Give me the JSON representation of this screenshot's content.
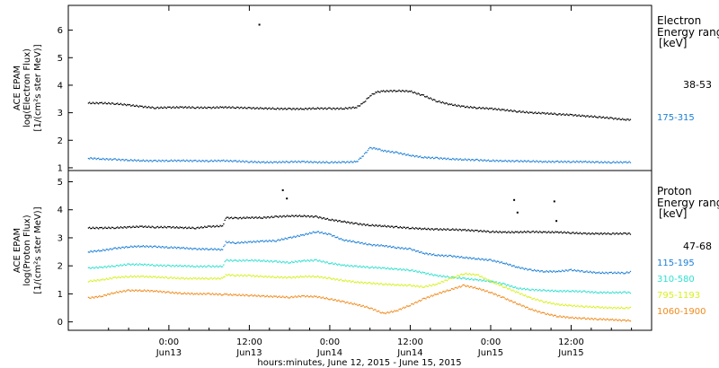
{
  "chart_data": [
    {
      "type": "scatter",
      "ylabel_lines": [
        "ACE EPAM",
        "log(Electron Flux)",
        "[1/(cm²s ster MeV)]"
      ],
      "ylim": [
        0.9,
        6.9
      ],
      "yticks": [
        1,
        2,
        3,
        4,
        5,
        6
      ],
      "legend_title_lines": [
        "Electron",
        "Energy ranges",
        "[keV]"
      ],
      "legend_placement": "right",
      "series": [
        {
          "name": "38-53",
          "color": "#000000",
          "x": [
            -12,
            -10,
            -8,
            -6,
            -4,
            -2,
            0,
            2,
            4,
            6,
            8,
            10,
            12,
            14,
            16,
            18,
            20,
            22,
            24,
            26,
            28,
            29,
            30,
            31,
            32,
            34,
            36,
            38,
            40,
            42,
            44,
            46,
            48,
            50,
            52,
            54,
            56,
            58,
            60,
            62,
            64,
            66,
            68,
            69
          ],
          "y": [
            3.35,
            3.35,
            3.33,
            3.28,
            3.22,
            3.18,
            3.19,
            3.2,
            3.19,
            3.18,
            3.2,
            3.19,
            3.17,
            3.16,
            3.15,
            3.14,
            3.14,
            3.16,
            3.15,
            3.15,
            3.2,
            3.35,
            3.62,
            3.75,
            3.78,
            3.8,
            3.78,
            3.62,
            3.42,
            3.3,
            3.22,
            3.18,
            3.15,
            3.1,
            3.05,
            3.0,
            2.98,
            2.95,
            2.92,
            2.88,
            2.85,
            2.8,
            2.75,
            2.75
          ]
        },
        {
          "name": "175-315",
          "color": "#1c7fd6",
          "x": [
            -12,
            -10,
            -8,
            -6,
            -4,
            -2,
            0,
            2,
            4,
            6,
            8,
            10,
            12,
            14,
            16,
            18,
            20,
            22,
            24,
            26,
            28,
            29,
            30,
            31,
            32,
            34,
            36,
            38,
            40,
            42,
            44,
            46,
            48,
            50,
            52,
            54,
            56,
            58,
            60,
            62,
            64,
            66,
            68,
            69
          ],
          "y": [
            1.35,
            1.32,
            1.3,
            1.28,
            1.26,
            1.25,
            1.26,
            1.26,
            1.25,
            1.25,
            1.26,
            1.24,
            1.22,
            1.2,
            1.2,
            1.22,
            1.22,
            1.2,
            1.2,
            1.2,
            1.22,
            1.45,
            1.72,
            1.7,
            1.62,
            1.55,
            1.45,
            1.38,
            1.35,
            1.32,
            1.3,
            1.28,
            1.26,
            1.25,
            1.24,
            1.24,
            1.22,
            1.22,
            1.22,
            1.22,
            1.2,
            1.2,
            1.2,
            1.2
          ]
        }
      ],
      "outliers": [
        {
          "x": 13.5,
          "y": 6.2,
          "series": "38-53"
        }
      ]
    },
    {
      "type": "scatter",
      "ylabel_lines": [
        "ACE EPAM",
        "log(Proton Flux)",
        "[1/(cm²s ster MeV)]"
      ],
      "ylim": [
        -0.3,
        5.4
      ],
      "yticks": [
        0,
        1,
        2,
        3,
        4,
        5
      ],
      "legend_title_lines": [
        "Proton",
        "Energy ranges",
        "[keV]"
      ],
      "legend_placement": "right",
      "xlabel": "hours:minutes, June 12, 2015 - June 15, 2015",
      "xlim": [
        -15,
        72
      ],
      "xticks": [
        {
          "x": 0,
          "line1": "0:00",
          "line2": "Jun13"
        },
        {
          "x": 12,
          "line1": "12:00",
          "line2": "Jun13"
        },
        {
          "x": 24,
          "line1": "0:00",
          "line2": "Jun14"
        },
        {
          "x": 36,
          "line1": "12:00",
          "line2": "Jun14"
        },
        {
          "x": 48,
          "line1": "0:00",
          "line2": "Jun15"
        },
        {
          "x": 60,
          "line1": "12:00",
          "line2": "Jun15"
        }
      ],
      "series": [
        {
          "name": "47-68",
          "color": "#000000",
          "x": [
            -12,
            -10,
            -8,
            -6,
            -4,
            -2,
            0,
            2,
            4,
            6,
            8,
            8.5,
            10,
            12,
            14,
            16,
            18,
            20,
            22,
            24,
            26,
            28,
            30,
            32,
            34,
            36,
            38,
            40,
            42,
            44,
            46,
            48,
            50,
            52,
            54,
            56,
            58,
            60,
            62,
            64,
            66,
            68,
            69
          ],
          "y": [
            3.35,
            3.35,
            3.36,
            3.38,
            3.4,
            3.38,
            3.38,
            3.36,
            3.35,
            3.4,
            3.42,
            3.72,
            3.7,
            3.72,
            3.72,
            3.75,
            3.78,
            3.78,
            3.75,
            3.65,
            3.58,
            3.5,
            3.45,
            3.42,
            3.38,
            3.35,
            3.32,
            3.3,
            3.3,
            3.28,
            3.25,
            3.22,
            3.2,
            3.2,
            3.22,
            3.2,
            3.2,
            3.18,
            3.15,
            3.15,
            3.15,
            3.15,
            3.15
          ]
        },
        {
          "name": "115-195",
          "color": "#1c7fd6",
          "x": [
            -12,
            -10,
            -8,
            -6,
            -4,
            -2,
            0,
            2,
            4,
            6,
            8,
            8.5,
            10,
            12,
            14,
            16,
            18,
            20,
            22,
            24,
            26,
            28,
            30,
            32,
            34,
            36,
            38,
            40,
            42,
            44,
            46,
            48,
            50,
            52,
            54,
            56,
            58,
            60,
            62,
            64,
            66,
            68,
            69
          ],
          "y": [
            2.5,
            2.55,
            2.62,
            2.68,
            2.7,
            2.68,
            2.66,
            2.64,
            2.6,
            2.6,
            2.58,
            2.85,
            2.82,
            2.85,
            2.88,
            2.9,
            3.0,
            3.1,
            3.22,
            3.12,
            2.92,
            2.85,
            2.75,
            2.72,
            2.65,
            2.6,
            2.45,
            2.38,
            2.35,
            2.3,
            2.25,
            2.2,
            2.1,
            1.95,
            1.85,
            1.8,
            1.8,
            1.85,
            1.8,
            1.75,
            1.75,
            1.75,
            1.78
          ]
        },
        {
          "name": "310-580",
          "color": "#30e0d0",
          "x": [
            -12,
            -10,
            -8,
            -6,
            -4,
            -2,
            0,
            2,
            4,
            6,
            8,
            8.5,
            10,
            12,
            14,
            16,
            18,
            20,
            22,
            24,
            26,
            28,
            30,
            32,
            34,
            36,
            38,
            40,
            42,
            44,
            46,
            48,
            50,
            52,
            54,
            56,
            58,
            60,
            62,
            64,
            66,
            68,
            69
          ],
          "y": [
            1.92,
            1.95,
            2.0,
            2.05,
            2.05,
            2.02,
            2.0,
            2.0,
            1.98,
            1.98,
            1.98,
            2.2,
            2.18,
            2.2,
            2.18,
            2.15,
            2.12,
            2.18,
            2.2,
            2.1,
            2.02,
            1.98,
            1.95,
            1.92,
            1.88,
            1.85,
            1.75,
            1.65,
            1.6,
            1.55,
            1.5,
            1.45,
            1.35,
            1.2,
            1.15,
            1.12,
            1.1,
            1.1,
            1.08,
            1.05,
            1.05,
            1.05,
            1.05
          ]
        },
        {
          "name": "795-1193",
          "color": "#d8f020",
          "x": [
            -12,
            -10,
            -8,
            -6,
            -4,
            -2,
            0,
            2,
            4,
            6,
            8,
            8.5,
            10,
            12,
            14,
            16,
            18,
            20,
            22,
            24,
            26,
            28,
            30,
            32,
            34,
            36,
            38,
            40,
            42,
            44,
            46,
            48,
            50,
            52,
            54,
            56,
            58,
            60,
            62,
            64,
            66,
            68,
            69
          ],
          "y": [
            1.45,
            1.5,
            1.58,
            1.62,
            1.62,
            1.6,
            1.58,
            1.55,
            1.55,
            1.55,
            1.55,
            1.68,
            1.66,
            1.65,
            1.62,
            1.6,
            1.58,
            1.62,
            1.62,
            1.55,
            1.48,
            1.42,
            1.38,
            1.35,
            1.32,
            1.3,
            1.25,
            1.35,
            1.55,
            1.72,
            1.68,
            1.45,
            1.25,
            1.05,
            0.85,
            0.72,
            0.62,
            0.58,
            0.55,
            0.52,
            0.5,
            0.5,
            0.5
          ]
        },
        {
          "name": "1060-1900",
          "color": "#f08a1c",
          "x": [
            -12,
            -10,
            -8,
            -6,
            -4,
            -2,
            0,
            2,
            4,
            6,
            8,
            8.5,
            10,
            12,
            14,
            16,
            18,
            20,
            22,
            24,
            26,
            28,
            30,
            32,
            34,
            36,
            38,
            40,
            42,
            44,
            46,
            48,
            50,
            52,
            54,
            56,
            58,
            60,
            62,
            64,
            66,
            68,
            69
          ],
          "y": [
            0.85,
            0.92,
            1.05,
            1.12,
            1.12,
            1.1,
            1.05,
            1.02,
            1.0,
            1.0,
            0.98,
            0.98,
            0.96,
            0.95,
            0.92,
            0.9,
            0.88,
            0.92,
            0.9,
            0.82,
            0.72,
            0.62,
            0.5,
            0.3,
            0.4,
            0.6,
            0.82,
            1.0,
            1.15,
            1.3,
            1.2,
            1.05,
            0.85,
            0.65,
            0.45,
            0.3,
            0.2,
            0.15,
            0.12,
            0.1,
            0.08,
            0.05,
            0.05
          ]
        }
      ],
      "outliers": [
        {
          "x": 17.0,
          "y": 4.7,
          "series": "47-68"
        },
        {
          "x": 17.6,
          "y": 4.4,
          "series": "47-68"
        },
        {
          "x": 51.5,
          "y": 4.35,
          "series": "47-68"
        },
        {
          "x": 52.0,
          "y": 3.9,
          "series": "47-68"
        },
        {
          "x": 57.5,
          "y": 4.3,
          "series": "47-68"
        },
        {
          "x": 57.8,
          "y": 3.6,
          "series": "47-68"
        }
      ]
    }
  ]
}
